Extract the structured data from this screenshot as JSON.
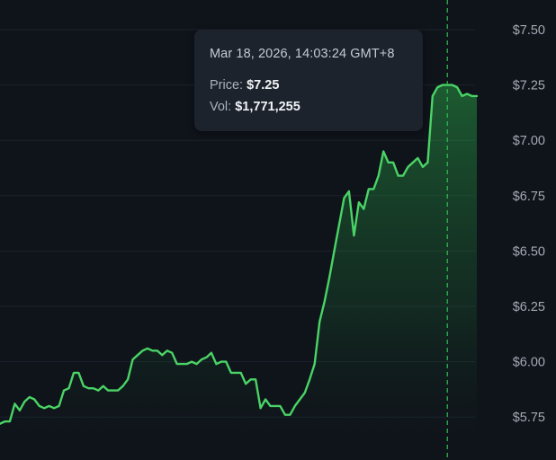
{
  "chart_data": {
    "type": "area",
    "title": "",
    "xlabel": "",
    "ylabel": "",
    "ylim": [
      5.7,
      7.56
    ],
    "y_ticks": [
      "$7.50",
      "$7.25",
      "$7.00",
      "$6.75",
      "$6.50",
      "$6.25",
      "$6.00",
      "$5.75"
    ],
    "y_tick_values": [
      7.5,
      7.25,
      7.0,
      6.75,
      6.5,
      6.25,
      6.0,
      5.75
    ],
    "y_axis_position": "right",
    "grid": true,
    "legend": "none",
    "series": [
      {
        "values": [
          5.72,
          5.73,
          5.73,
          5.81,
          5.78,
          5.82,
          5.84,
          5.83,
          5.8,
          5.79,
          5.8,
          5.79,
          5.8,
          5.87,
          5.88,
          5.95,
          5.95,
          5.89,
          5.88,
          5.88,
          5.87,
          5.89,
          5.87,
          5.87,
          5.87,
          5.89,
          5.92,
          6.01,
          6.03,
          6.05,
          6.06,
          6.05,
          6.05,
          6.03,
          6.05,
          6.04,
          5.99,
          5.99,
          5.99,
          6.0,
          5.99,
          6.01,
          6.02,
          6.04,
          5.99,
          6.0,
          6.0,
          5.95,
          5.95,
          5.95,
          5.9,
          5.92,
          5.92,
          5.79,
          5.83,
          5.8,
          5.8,
          5.8,
          5.76,
          5.76,
          5.8,
          5.83,
          5.86,
          5.92,
          5.99,
          6.18,
          6.27,
          6.38,
          6.5,
          6.62,
          6.74,
          6.77,
          6.57,
          6.72,
          6.69,
          6.78,
          6.78,
          6.84,
          6.95,
          6.9,
          6.9,
          6.84,
          6.84,
          6.88,
          6.9,
          6.92,
          6.88,
          6.9,
          7.2,
          7.24,
          7.25,
          7.25,
          7.25,
          7.24,
          7.2,
          7.21,
          7.2,
          7.2
        ]
      }
    ],
    "crosshair_index": 91,
    "colors": {
      "background": "#0f131a",
      "line": "#4ad366",
      "grid": "#1d232c",
      "tick_text": "#a4abb5",
      "crosshair": "#2ec155",
      "tooltip_bg": "#1c232d"
    }
  },
  "tooltip": {
    "time": "Mar 18, 2026, 14:03:24 GMT+8",
    "price_label": "Price:",
    "price_value": "$7.25",
    "vol_label": "Vol:",
    "vol_value": "$1,771,255"
  }
}
